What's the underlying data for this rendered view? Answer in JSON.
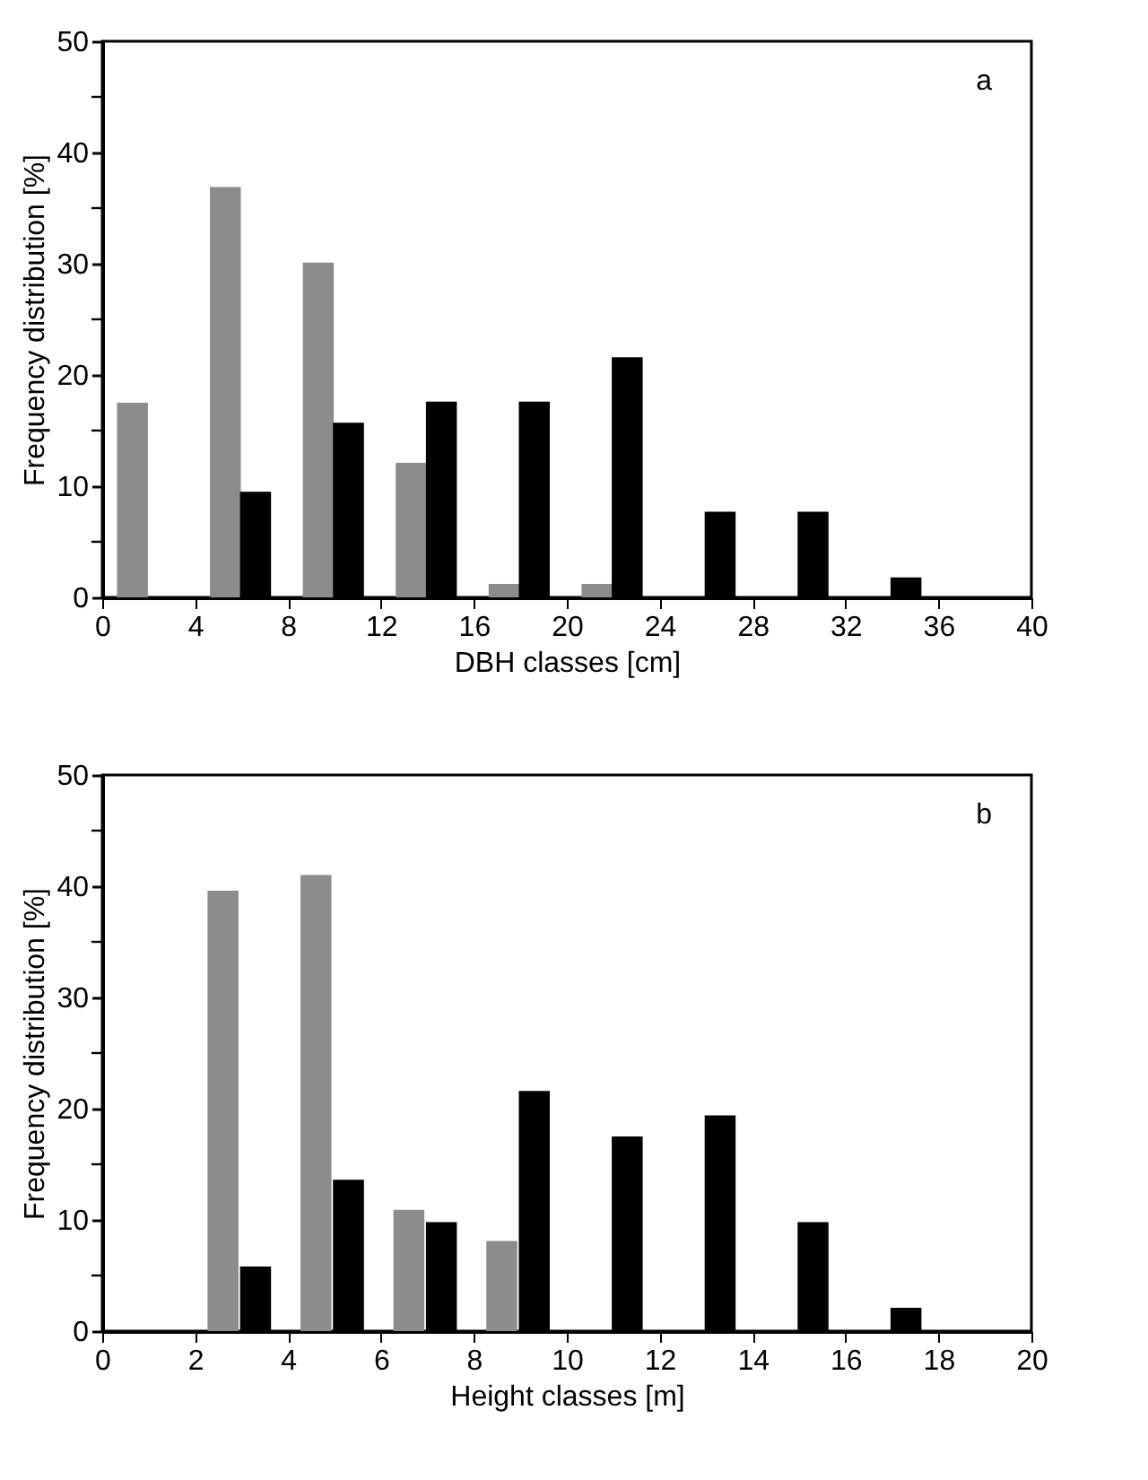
{
  "chart_data": [
    {
      "type": "bar",
      "xlabel": "DBH classes [cm]",
      "ylabel": "Frequency distribution [%]",
      "annotations": [
        "a"
      ],
      "grid": false,
      "xlim": [
        0,
        40
      ],
      "xticks": [
        0,
        4,
        8,
        12,
        16,
        20,
        24,
        28,
        32,
        36,
        40
      ],
      "ylim": [
        0,
        50
      ],
      "yticks": [
        0,
        {
          "value": 5,
          "label": null
        },
        10,
        {
          "value": 15,
          "label": null
        },
        20,
        {
          "value": 25,
          "label": null
        },
        30,
        {
          "value": 35,
          "label": null
        },
        40,
        {
          "value": 45,
          "label": null
        },
        50
      ],
      "series": [
        {
          "color": "#8c8c8c",
          "x": [
            1.3,
            5.3,
            9.3,
            13.3,
            17.3,
            21.3
          ],
          "values": [
            17.5,
            36.9,
            30.1,
            12.1,
            1.2,
            1.2
          ]
        },
        {
          "color": "#000000",
          "x": [
            6.6,
            10.6,
            14.6,
            18.6,
            22.6,
            26.6,
            30.6,
            34.6
          ],
          "values": [
            9.5,
            15.7,
            17.6,
            17.6,
            21.6,
            7.7,
            7.7,
            1.8
          ]
        }
      ]
    },
    {
      "type": "bar",
      "xlabel": "Height classes [m]",
      "ylabel": "Frequency distribution [%]",
      "annotations": [
        "b"
      ],
      "grid": false,
      "xlim": [
        0,
        20
      ],
      "xticks": [
        0,
        2,
        4,
        6,
        8,
        10,
        12,
        14,
        16,
        18,
        20
      ],
      "ylim": [
        0,
        50
      ],
      "yticks": [
        0,
        {
          "value": 5,
          "label": null
        },
        10,
        {
          "value": 15,
          "label": null
        },
        20,
        {
          "value": 25,
          "label": null
        },
        30,
        {
          "value": 35,
          "label": null
        },
        40,
        {
          "value": 45,
          "label": null
        },
        50
      ],
      "series": [
        {
          "color": "#8c8c8c",
          "x": [
            2.6,
            4.6,
            6.6,
            8.6
          ],
          "values": [
            39.6,
            41.0,
            10.9,
            8.1
          ]
        },
        {
          "color": "#000000",
          "x": [
            3.3,
            5.3,
            7.3,
            9.3,
            11.3,
            13.3,
            15.3,
            17.3
          ],
          "values": [
            5.8,
            13.6,
            9.8,
            21.6,
            17.5,
            19.4,
            9.8,
            2.1
          ]
        }
      ]
    }
  ]
}
